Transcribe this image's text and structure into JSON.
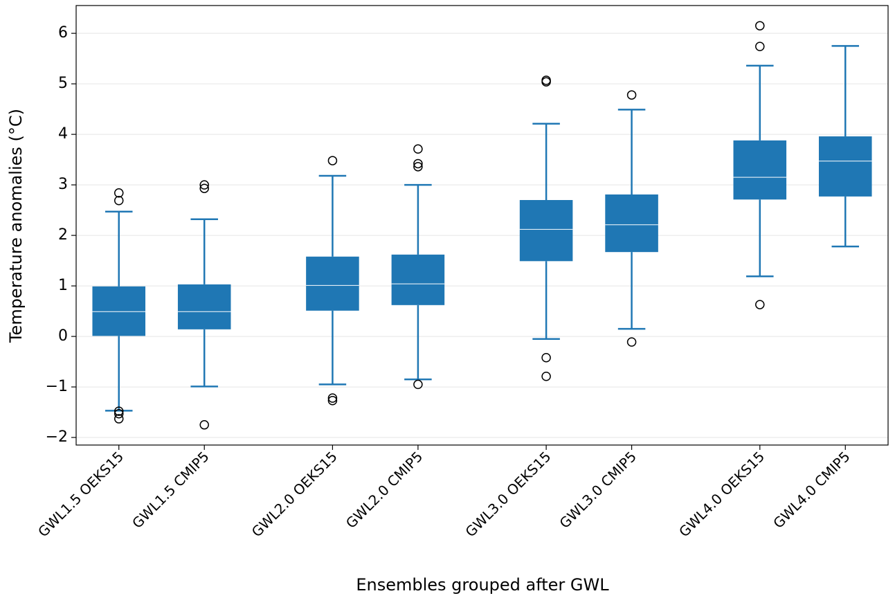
{
  "chart_data": {
    "type": "box",
    "x_label": "Ensembles grouped after GWL",
    "y_label": "Temperature anomalies (°C)",
    "categories": [
      "GWL1.5 OEKS15",
      "GWL1.5 CMIP5",
      "GWL2.0 OEKS15",
      "GWL2.0 CMIP5",
      "GWL3.0 OEKS15",
      "GWL3.0 CMIP5",
      "GWL4.0 OEKS15",
      "GWL4.0 CMIP5"
    ],
    "x": [
      1,
      2,
      3.5,
      4.5,
      6,
      7,
      8.5,
      9.5
    ],
    "xlim": [
      0.5,
      10
    ],
    "whislo": [
      -1.47,
      -0.99,
      -0.95,
      -0.85,
      -0.05,
      0.15,
      1.19,
      1.78
    ],
    "q1": [
      0.01,
      0.14,
      0.51,
      0.62,
      1.49,
      1.67,
      2.71,
      2.77
    ],
    "med": [
      0.49,
      0.49,
      1.01,
      1.04,
      2.12,
      2.21,
      3.15,
      3.47
    ],
    "q3": [
      0.99,
      1.03,
      1.58,
      1.62,
      2.7,
      2.81,
      3.88,
      3.96
    ],
    "whishi": [
      2.47,
      2.32,
      3.18,
      3.0,
      4.21,
      4.49,
      5.36,
      5.75
    ],
    "fliers": [
      [
        2.84,
        2.69,
        -1.48,
        -1.53,
        -1.63
      ],
      [
        3.0,
        2.93,
        -1.75
      ],
      [
        3.48,
        -1.22,
        -1.27
      ],
      [
        3.71,
        3.42,
        3.36,
        -0.95
      ],
      [
        5.07,
        5.04,
        -0.42,
        -0.79
      ],
      [
        4.78,
        -0.11
      ],
      [
        6.15,
        5.74,
        0.63
      ],
      []
    ],
    "color": "#1f77b4",
    "median_color": "#ffffff",
    "ylim": [
      -2.15,
      6.55
    ],
    "yticks": [
      {
        "value": -2,
        "label": "−2"
      },
      {
        "value": -1,
        "label": "−1"
      },
      0,
      1,
      2,
      3,
      4,
      5,
      6
    ],
    "grid": true
  }
}
